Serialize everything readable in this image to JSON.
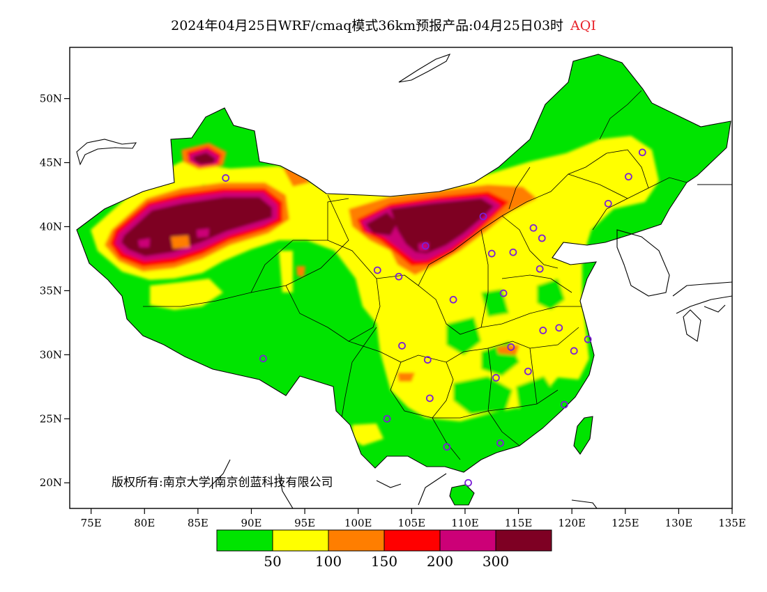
{
  "title": "2024年04月25日WRF/cmaq模式36km预报产品:04月25日03时",
  "title_suffix": "AQI",
  "colors": {
    "suffix": "#e8222a",
    "frame": "#000000",
    "boundary": "#000000",
    "coast": "#000000"
  },
  "copyright": "版权所有:南京大学|南京创蓝科技有限公司",
  "lat_ticks": [
    {
      "label": "50N",
      "value": 50
    },
    {
      "label": "45N",
      "value": 45
    },
    {
      "label": "40N",
      "value": 40
    },
    {
      "label": "35N",
      "value": 35
    },
    {
      "label": "30N",
      "value": 30
    },
    {
      "label": "25N",
      "value": 25
    },
    {
      "label": "20N",
      "value": 20
    }
  ],
  "lon_ticks": [
    {
      "label": "75E",
      "value": 75
    },
    {
      "label": "80E",
      "value": 80
    },
    {
      "label": "85E",
      "value": 85
    },
    {
      "label": "90E",
      "value": 90
    },
    {
      "label": "95E",
      "value": 95
    },
    {
      "label": "100E",
      "value": 100
    },
    {
      "label": "105E",
      "value": 105
    },
    {
      "label": "110E",
      "value": 110
    },
    {
      "label": "115E",
      "value": 115
    },
    {
      "label": "120E",
      "value": 120
    },
    {
      "label": "125E",
      "value": 125
    },
    {
      "label": "130E",
      "value": 130
    },
    {
      "label": "135E",
      "value": 135
    }
  ],
  "map_extent": {
    "lon": [
      73,
      135
    ],
    "lat": [
      18,
      54
    ]
  },
  "legend": {
    "colors": [
      "#00e400",
      "#ffff00",
      "#ff7e00",
      "#ff0000",
      "#cc0077",
      "#7e0023"
    ],
    "labels": [
      "50",
      "100",
      "150",
      "200",
      "300"
    ]
  },
  "stations": [
    [
      126.6,
      45.8
    ],
    [
      125.3,
      43.9
    ],
    [
      123.4,
      41.8
    ],
    [
      116.4,
      39.9
    ],
    [
      117.2,
      39.1
    ],
    [
      114.5,
      38.0
    ],
    [
      112.5,
      37.9
    ],
    [
      111.7,
      40.8
    ],
    [
      117.0,
      36.7
    ],
    [
      113.6,
      34.8
    ],
    [
      108.9,
      34.3
    ],
    [
      106.3,
      38.5
    ],
    [
      103.8,
      36.1
    ],
    [
      101.8,
      36.6
    ],
    [
      104.1,
      30.7
    ],
    [
      106.5,
      29.6
    ],
    [
      114.3,
      30.6
    ],
    [
      112.9,
      28.2
    ],
    [
      115.9,
      28.7
    ],
    [
      117.3,
      31.9
    ],
    [
      118.8,
      32.1
    ],
    [
      120.2,
      30.3
    ],
    [
      121.5,
      31.2
    ],
    [
      119.3,
      26.1
    ],
    [
      113.3,
      23.1
    ],
    [
      108.3,
      22.8
    ],
    [
      102.7,
      25.0
    ],
    [
      106.7,
      26.6
    ],
    [
      110.3,
      20.0
    ],
    [
      91.1,
      29.7
    ],
    [
      87.6,
      43.8
    ]
  ]
}
